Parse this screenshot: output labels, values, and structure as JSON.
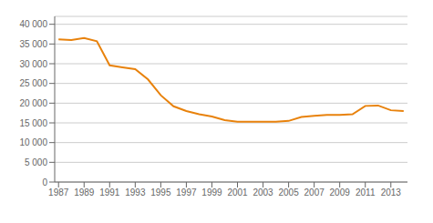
{
  "chart_data": {
    "type": "line",
    "x": [
      1987,
      1988,
      1989,
      1990,
      1991,
      1992,
      1993,
      1994,
      1995,
      1996,
      1997,
      1998,
      1999,
      2000,
      2001,
      2002,
      2003,
      2004,
      2005,
      2006,
      2007,
      2008,
      2009,
      2010,
      2011,
      2012,
      2013,
      2014
    ],
    "values": [
      36200,
      36000,
      36500,
      35700,
      29600,
      29100,
      28600,
      26000,
      22000,
      19200,
      18000,
      17200,
      16600,
      15700,
      15300,
      15300,
      15300,
      15300,
      15500,
      16500,
      16800,
      17000,
      17000,
      17200,
      19300,
      19400,
      18200,
      18000
    ],
    "color": "#E8820C",
    "xlim": [
      1986.7,
      2014.3
    ],
    "ylim": [
      0,
      42000
    ],
    "xticks": [
      1987,
      1989,
      1991,
      1993,
      1995,
      1997,
      1999,
      2001,
      2003,
      2005,
      2007,
      2009,
      2011,
      2013
    ],
    "yticks": [
      0,
      {
        "value": 5000,
        "label": "5 000"
      },
      {
        "value": 10000,
        "label": "10 000"
      },
      {
        "value": 15000,
        "label": "15 000"
      },
      {
        "value": 20000,
        "label": "20 000"
      },
      {
        "value": 25000,
        "label": "25 000"
      },
      {
        "value": 30000,
        "label": "30 000"
      },
      {
        "value": 35000,
        "label": "35 000"
      },
      {
        "value": 40000,
        "label": "40 000"
      }
    ],
    "grid": true
  }
}
